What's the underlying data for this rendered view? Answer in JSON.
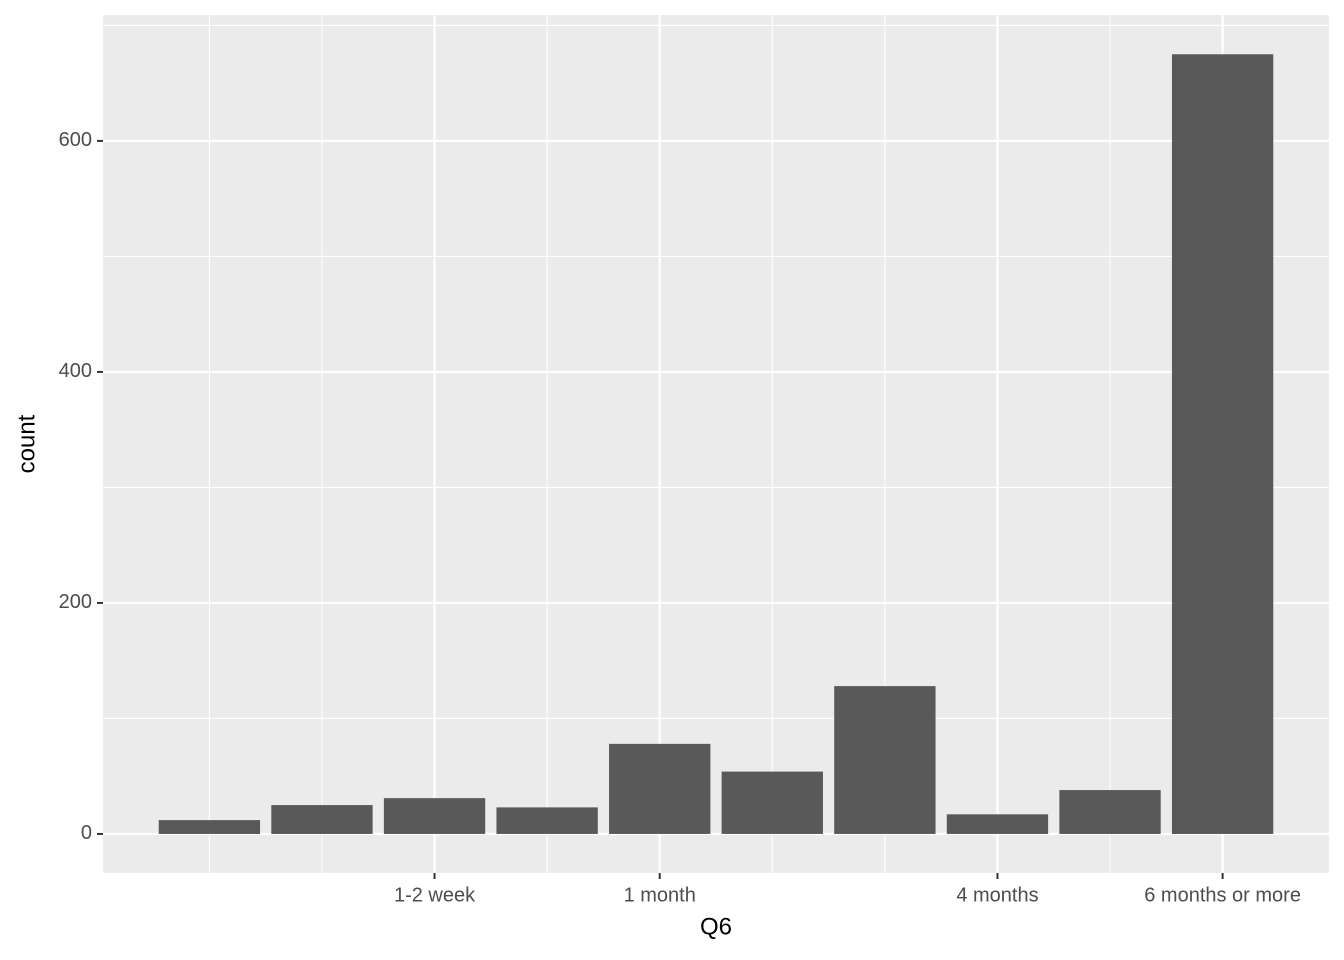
{
  "chart_data": {
    "type": "bar",
    "x_label": "Q6",
    "y_label": "count",
    "categories": [
      null,
      null,
      "1-2 week",
      null,
      "1 month",
      null,
      null,
      "4 months",
      null,
      "6 months or more"
    ],
    "values": [
      12,
      25,
      31,
      23,
      78,
      54,
      128,
      17,
      38,
      675
    ],
    "color": "#595959",
    "ylim": [
      -33.8,
      709
    ],
    "yticks": [
      0,
      200,
      400,
      600
    ],
    "grid": true
  }
}
